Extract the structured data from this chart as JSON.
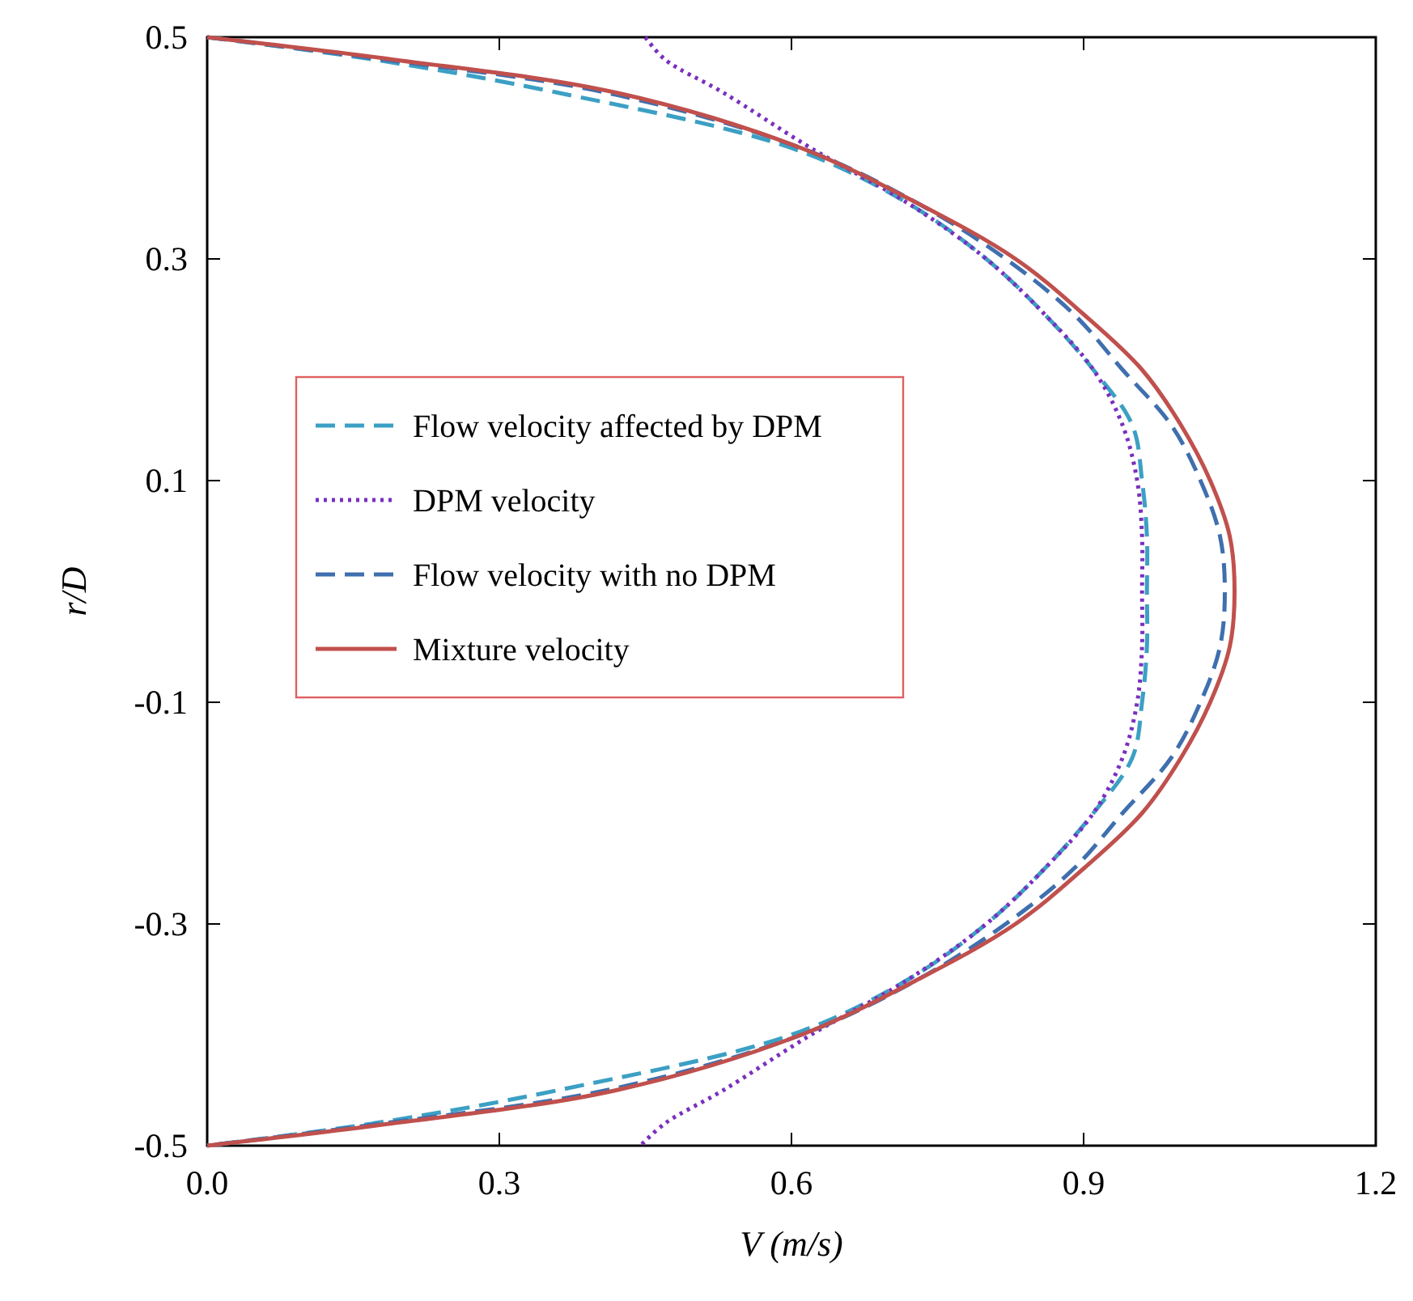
{
  "chart_data": {
    "type": "line",
    "xlabel": "V (m/s)",
    "ylabel": "r/D",
    "xlim": [
      0,
      1.2
    ],
    "ylim": [
      -0.5,
      0.5
    ],
    "xticks": [
      {
        "value": 0,
        "label": "0.0"
      },
      0.3,
      0.6,
      0.9,
      1.2
    ],
    "yticks": [
      -0.5,
      -0.3,
      -0.1,
      0.1,
      0.3,
      0.5
    ],
    "legend": "left",
    "grid": false,
    "marker": "none",
    "series": [
      {
        "name": "Flow velocity affected by DPM",
        "color": "#3ca0c4",
        "line_style": "dashed",
        "x": [
          0,
          0.17,
          0.36,
          0.6,
          0.72,
          0.8,
          0.86,
          0.91,
          0.95,
          0.96,
          0.965,
          0.965,
          0.965,
          0.96,
          0.95,
          0.91,
          0.86,
          0.8,
          0.72,
          0.6,
          0.36,
          0.17,
          0
        ],
        "values": [
          0.5,
          0.48,
          0.45,
          0.4,
          0.35,
          0.3,
          0.25,
          0.2,
          0.15,
          0.1,
          0.05,
          0,
          -0.05,
          -0.1,
          -0.15,
          -0.2,
          -0.25,
          -0.3,
          -0.35,
          -0.4,
          -0.45,
          -0.48,
          -0.5
        ]
      },
      {
        "name": "DPM velocity",
        "color": "#7a2fbf",
        "line_style": "dotted",
        "x": [
          0.45,
          0.47,
          0.53,
          0.62,
          0.72,
          0.8,
          0.86,
          0.91,
          0.94,
          0.955,
          0.96,
          0.96,
          0.96,
          0.955,
          0.94,
          0.91,
          0.86,
          0.8,
          0.72,
          0.62,
          0.53,
          0.47,
          0.445
        ],
        "values": [
          0.5,
          0.48,
          0.45,
          0.4,
          0.35,
          0.3,
          0.25,
          0.2,
          0.15,
          0.1,
          0.05,
          0,
          -0.05,
          -0.1,
          -0.15,
          -0.2,
          -0.25,
          -0.3,
          -0.35,
          -0.4,
          -0.45,
          -0.48,
          -0.5
        ]
      },
      {
        "name": "Flow velocity with no DPM",
        "color": "#3f6fae",
        "line_style": "dashed",
        "x": [
          0,
          0.18,
          0.41,
          0.61,
          0.73,
          0.82,
          0.89,
          0.94,
          0.99,
          1.02,
          1.04,
          1.045,
          1.04,
          1.02,
          0.99,
          0.94,
          0.89,
          0.82,
          0.73,
          0.61,
          0.41,
          0.18,
          0
        ],
        "values": [
          0.5,
          0.48,
          0.45,
          0.4,
          0.35,
          0.3,
          0.25,
          0.2,
          0.15,
          0.1,
          0.05,
          0,
          -0.05,
          -0.1,
          -0.15,
          -0.2,
          -0.25,
          -0.3,
          -0.35,
          -0.4,
          -0.45,
          -0.48,
          -0.5
        ]
      },
      {
        "name": "Mixture velocity",
        "color": "#c0504d",
        "line_style": "solid",
        "x": [
          0,
          0.19,
          0.42,
          0.61,
          0.73,
          0.83,
          0.9,
          0.96,
          1.0,
          1.03,
          1.05,
          1.055,
          1.05,
          1.03,
          1.0,
          0.96,
          0.9,
          0.83,
          0.73,
          0.61,
          0.42,
          0.19,
          0
        ],
        "values": [
          0.5,
          0.48,
          0.45,
          0.4,
          0.35,
          0.3,
          0.25,
          0.2,
          0.15,
          0.1,
          0.05,
          0,
          -0.05,
          -0.1,
          -0.15,
          -0.2,
          -0.25,
          -0.3,
          -0.35,
          -0.4,
          -0.45,
          -0.48,
          -0.5
        ]
      }
    ]
  }
}
